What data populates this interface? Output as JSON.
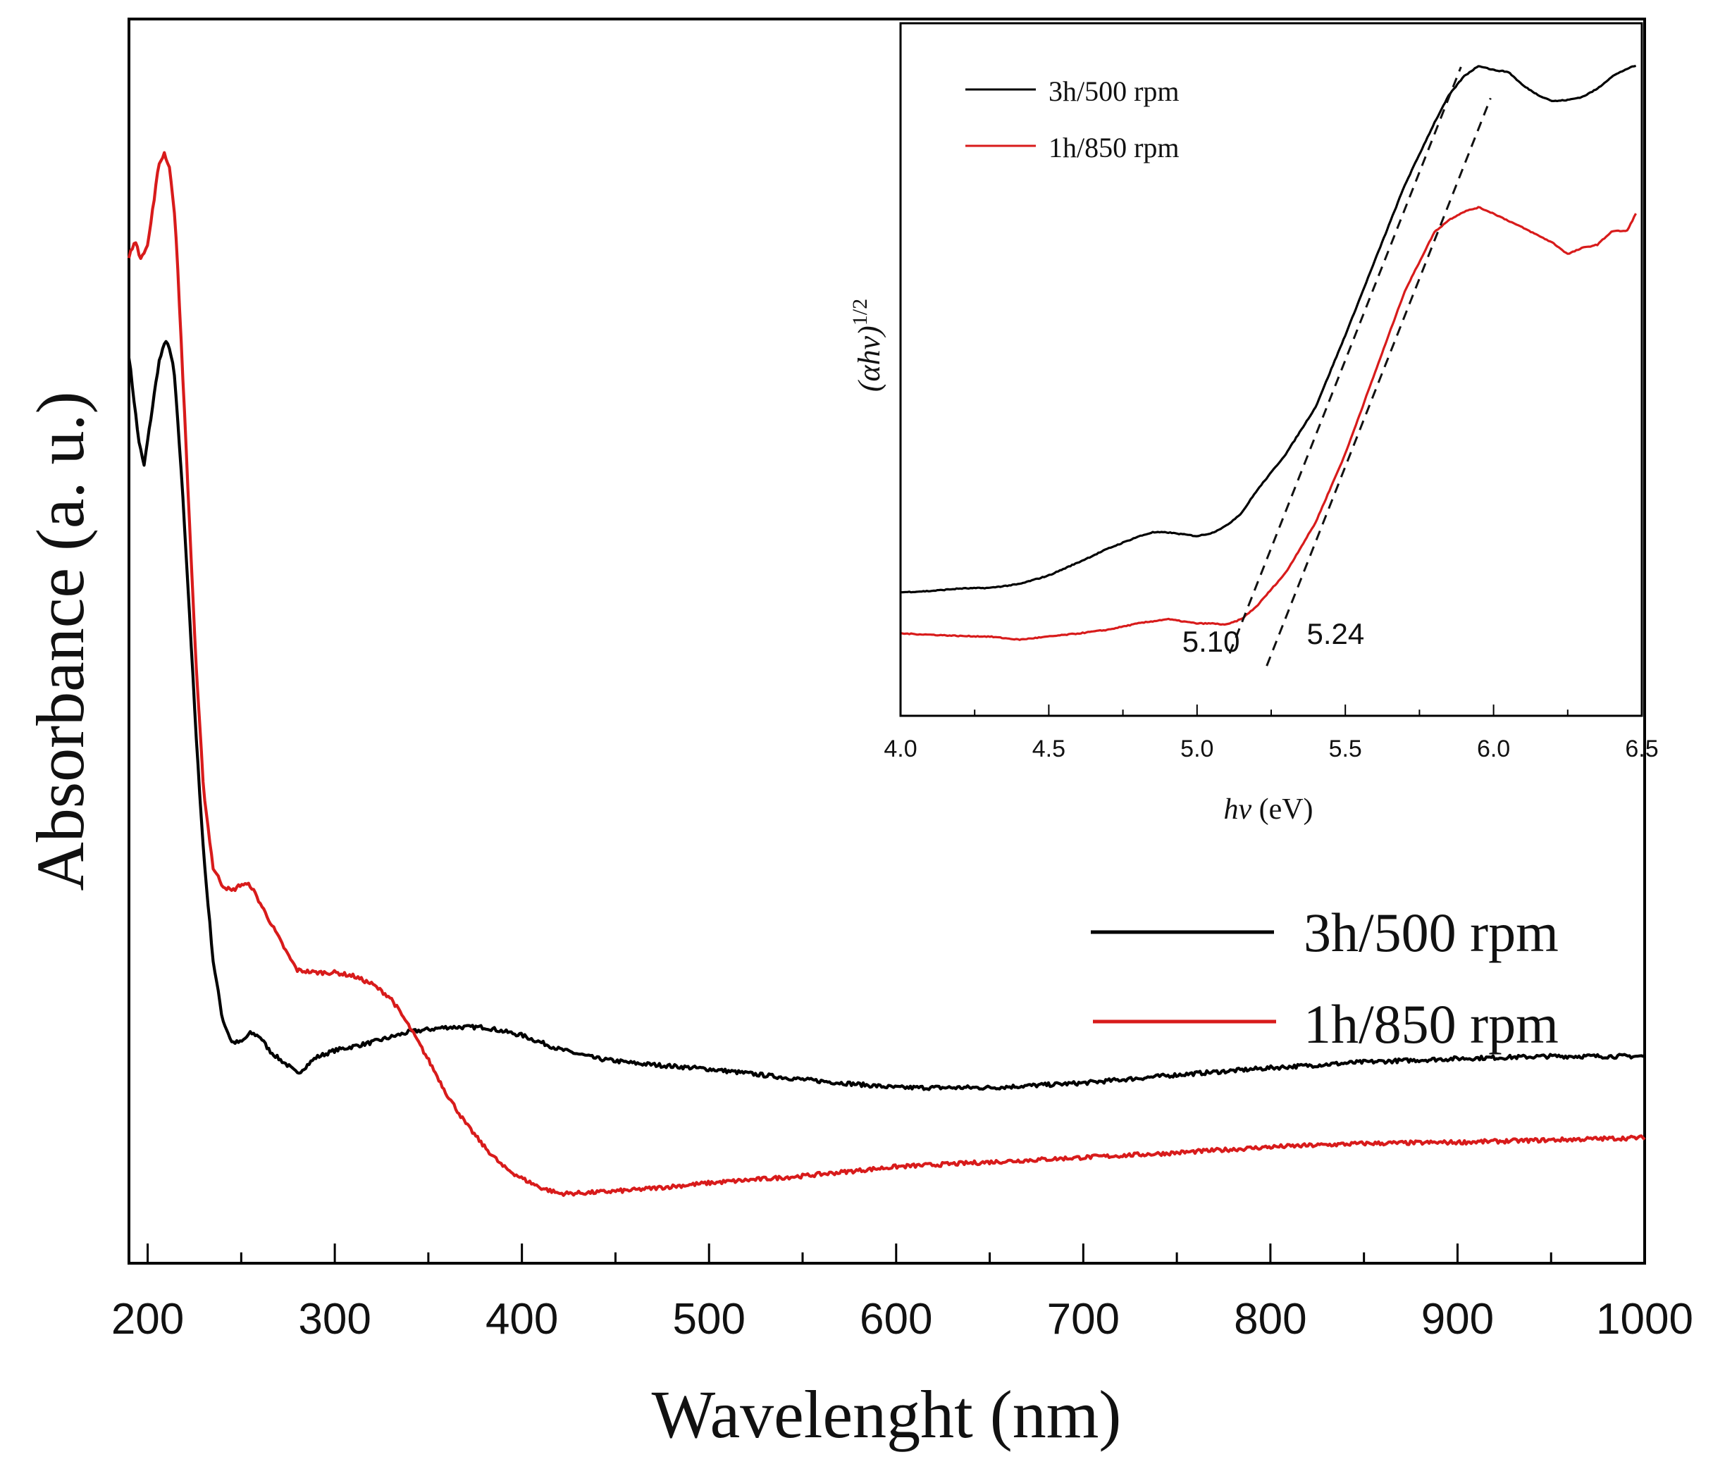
{
  "chart_data": [
    {
      "id": "main",
      "type": "line",
      "title": "",
      "xlabel": "Wavelenght (nm)",
      "ylabel": "Absorbance (a. u.)",
      "xlim": [
        190,
        1000
      ],
      "ylim": [
        0,
        100
      ],
      "x_ticks": [
        200,
        300,
        400,
        500,
        600,
        700,
        800,
        900,
        1000
      ],
      "x_tick_labels": [
        "200",
        "300",
        "400",
        "500",
        "600",
        "700",
        "800",
        "900",
        "1000"
      ],
      "y_ticks_shown": false,
      "grid": false,
      "legend_position": "right-lower",
      "series": [
        {
          "name": "3h/500 rpm",
          "color": "#000000",
          "points": [
            [
              190,
              73
            ],
            [
              195,
              66
            ],
            [
              198,
              63.5
            ],
            [
              202,
              68
            ],
            [
              206,
              72.5
            ],
            [
              210,
              74.5
            ],
            [
              214,
              72
            ],
            [
              218,
              63
            ],
            [
              222,
              52
            ],
            [
              226,
              40
            ],
            [
              230,
              30
            ],
            [
              235,
              21
            ],
            [
              240,
              16
            ],
            [
              245,
              14
            ],
            [
              250,
              14
            ],
            [
              255,
              14.8
            ],
            [
              260,
              14.5
            ],
            [
              265,
              13.3
            ],
            [
              270,
              12.6
            ],
            [
              275,
              12
            ],
            [
              280,
              11.3
            ],
            [
              285,
              12
            ],
            [
              290,
              12.7
            ],
            [
              300,
              13.3
            ],
            [
              320,
              14
            ],
            [
              340,
              14.9
            ],
            [
              360,
              15.3
            ],
            [
              380,
              15.3
            ],
            [
              400,
              14.6
            ],
            [
              420,
              13.4
            ],
            [
              440,
              12.6
            ],
            [
              460,
              12.2
            ],
            [
              500,
              11.7
            ],
            [
              550,
              10.8
            ],
            [
              600,
              10.1
            ],
            [
              650,
              10.1
            ],
            [
              700,
              10.5
            ],
            [
              750,
              11.2
            ],
            [
              800,
              11.8
            ],
            [
              850,
              12.3
            ],
            [
              900,
              12.6
            ],
            [
              950,
              12.8
            ],
            [
              1000,
              12.8
            ]
          ]
        },
        {
          "name": "1h/850 rpm",
          "color": "#d81b1b",
          "points": [
            [
              190,
              81.5
            ],
            [
              193,
              83
            ],
            [
              196,
              81.5
            ],
            [
              200,
              82.5
            ],
            [
              203,
              86
            ],
            [
              206,
              89.5
            ],
            [
              209,
              90.5
            ],
            [
              212,
              89
            ],
            [
              215,
              84
            ],
            [
              218,
              74
            ],
            [
              222,
              60
            ],
            [
              226,
              46
            ],
            [
              230,
              35.5
            ],
            [
              235,
              29
            ],
            [
              240,
              27.5
            ],
            [
              245,
              27
            ],
            [
              250,
              27.6
            ],
            [
              255,
              27.5
            ],
            [
              260,
              26
            ],
            [
              265,
              24.5
            ],
            [
              270,
              23
            ],
            [
              275,
              21.5
            ],
            [
              280,
              20.2
            ],
            [
              290,
              20
            ],
            [
              300,
              20
            ],
            [
              310,
              19.7
            ],
            [
              320,
              19
            ],
            [
              330,
              17.8
            ],
            [
              340,
              15.3
            ],
            [
              350,
              12.5
            ],
            [
              360,
              9.5
            ],
            [
              370,
              7
            ],
            [
              380,
              5
            ],
            [
              390,
              3.3
            ],
            [
              400,
              2.3
            ],
            [
              410,
              1.5
            ],
            [
              420,
              1
            ],
            [
              425,
              1
            ],
            [
              440,
              1.1
            ],
            [
              460,
              1.3
            ],
            [
              500,
              1.9
            ],
            [
              550,
              2.5
            ],
            [
              600,
              3.3
            ],
            [
              650,
              3.7
            ],
            [
              700,
              4.1
            ],
            [
              750,
              4.5
            ],
            [
              800,
              5
            ],
            [
              850,
              5.3
            ],
            [
              900,
              5.4
            ],
            [
              950,
              5.6
            ],
            [
              1000,
              5.8
            ]
          ]
        }
      ]
    },
    {
      "id": "inset",
      "type": "line",
      "title": "",
      "xlabel": "hv (eV)",
      "ylabel": "(αhv)^1/2",
      "xlim": [
        4.0,
        6.5
      ],
      "ylim": [
        0,
        100
      ],
      "x_ticks": [
        4.0,
        4.5,
        5.0,
        5.5,
        6.0,
        6.5
      ],
      "x_tick_labels": [
        "4.0",
        "4.5",
        "5.0",
        "5.5",
        "6.0",
        "6.5"
      ],
      "y_ticks_shown": false,
      "grid": false,
      "legend_position": "top-left",
      "series": [
        {
          "name": "3h/500 rpm",
          "color": "#000000",
          "points": [
            [
              4.0,
              12.8
            ],
            [
              4.1,
              13.0
            ],
            [
              4.2,
              13.4
            ],
            [
              4.3,
              13.5
            ],
            [
              4.4,
              14.1
            ],
            [
              4.5,
              15.5
            ],
            [
              4.6,
              17.6
            ],
            [
              4.7,
              19.8
            ],
            [
              4.8,
              21.7
            ],
            [
              4.85,
              22.4
            ],
            [
              4.9,
              22.4
            ],
            [
              4.95,
              22.1
            ],
            [
              5.0,
              21.8
            ],
            [
              5.05,
              22.3
            ],
            [
              5.1,
              23.5
            ],
            [
              5.15,
              25.5
            ],
            [
              5.2,
              29
            ],
            [
              5.3,
              35
            ],
            [
              5.4,
              42.5
            ],
            [
              5.5,
              54
            ],
            [
              5.6,
              66
            ],
            [
              5.7,
              78
            ],
            [
              5.8,
              88
            ],
            [
              5.85,
              92.5
            ],
            [
              5.9,
              95.5
            ],
            [
              5.95,
              97.2
            ],
            [
              6.0,
              96.5
            ],
            [
              6.05,
              96.2
            ],
            [
              6.1,
              94
            ],
            [
              6.15,
              92.5
            ],
            [
              6.2,
              91.5
            ],
            [
              6.25,
              91.7
            ],
            [
              6.3,
              92.2
            ],
            [
              6.35,
              93.5
            ],
            [
              6.4,
              95.5
            ],
            [
              6.45,
              96.7
            ],
            [
              6.48,
              97.2
            ]
          ]
        },
        {
          "name": "1h/850 rpm",
          "color": "#d81b1b",
          "points": [
            [
              4.0,
              6.2
            ],
            [
              4.1,
              6.0
            ],
            [
              4.2,
              5.8
            ],
            [
              4.3,
              5.7
            ],
            [
              4.4,
              5.2
            ],
            [
              4.5,
              5.7
            ],
            [
              4.6,
              6.2
            ],
            [
              4.7,
              6.8
            ],
            [
              4.8,
              7.8
            ],
            [
              4.9,
              8.5
            ],
            [
              5.0,
              7.8
            ],
            [
              5.05,
              7.8
            ],
            [
              5.1,
              7.6
            ],
            [
              5.15,
              8.5
            ],
            [
              5.2,
              10.5
            ],
            [
              5.3,
              16
            ],
            [
              5.4,
              24
            ],
            [
              5.5,
              35
            ],
            [
              5.6,
              48
            ],
            [
              5.7,
              61
            ],
            [
              5.8,
              70.5
            ],
            [
              5.85,
              72.5
            ],
            [
              5.9,
              73.8
            ],
            [
              5.95,
              74.5
            ],
            [
              6.0,
              73.5
            ],
            [
              6.1,
              71.2
            ],
            [
              6.2,
              68.8
            ],
            [
              6.25,
              67
            ],
            [
              6.3,
              68
            ],
            [
              6.35,
              68.5
            ],
            [
              6.4,
              70.7
            ],
            [
              6.45,
              70.7
            ],
            [
              6.48,
              73.5
            ]
          ]
        }
      ],
      "tangent_lines": [
        {
          "from": [
            5.11,
            3
          ],
          "to": [
            5.89,
            97
          ]
        },
        {
          "from": [
            5.235,
            1
          ],
          "to": [
            5.99,
            92
          ]
        }
      ],
      "annotations": [
        {
          "text": "5.10",
          "x": 4.95,
          "y": 3.3
        },
        {
          "text": "5.24",
          "x": 5.37,
          "y": 4.5
        }
      ]
    }
  ]
}
